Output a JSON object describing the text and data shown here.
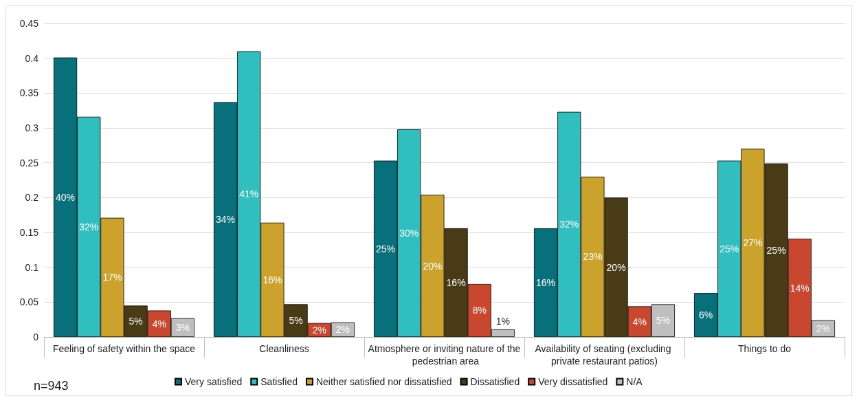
{
  "chart_data": {
    "type": "bar",
    "categories": [
      "Feeling of safety within the space",
      "Cleanliness",
      "Atmosphere or inviting nature of the pedestrian area",
      "Availability of seating (excluding private restaurant patios)",
      "Things to do"
    ],
    "series": [
      {
        "name": "Very satisfied",
        "color": "#08707a",
        "values": [
          0.401,
          0.337,
          0.253,
          0.156,
          0.063
        ],
        "value_labels": [
          "40%",
          "34%",
          "25%",
          "16%",
          "6%"
        ]
      },
      {
        "name": "Satisfied",
        "color": "#30bebe",
        "values": [
          0.316,
          0.41,
          0.298,
          0.323,
          0.253
        ],
        "value_labels": [
          "32%",
          "41%",
          "30%",
          "32%",
          "25%"
        ]
      },
      {
        "name": "Neither satisfied nor dissatisfied",
        "color": "#caa22c",
        "values": [
          0.171,
          0.164,
          0.204,
          0.23,
          0.27
        ],
        "value_labels": [
          "17%",
          "16%",
          "20%",
          "23%",
          "27%"
        ]
      },
      {
        "name": "Dissatisfied",
        "color": "#4a3b17",
        "values": [
          0.045,
          0.047,
          0.156,
          0.2,
          0.249
        ],
        "value_labels": [
          "5%",
          "5%",
          "16%",
          "20%",
          "25%"
        ]
      },
      {
        "name": "Very dissatisfied",
        "color": "#c9472e",
        "values": [
          0.038,
          0.02,
          0.076,
          0.044,
          0.141
        ],
        "value_labels": [
          "4%",
          "2%",
          "8%",
          "4%",
          "14%"
        ]
      },
      {
        "name": "N/A",
        "color": "#bfbfbf",
        "values": [
          0.027,
          0.021,
          0.011,
          0.047,
          0.024
        ],
        "value_labels": [
          "3%",
          "2%",
          "1%",
          "5%",
          "2%"
        ]
      }
    ],
    "ylim": [
      0,
      0.45
    ],
    "yticks": [
      0,
      0.05,
      0.1,
      0.15,
      0.2,
      0.25,
      0.3,
      0.35,
      0.4,
      0.45
    ],
    "grid": "y",
    "legend": "bottom",
    "annotations": [
      "n=943"
    ]
  }
}
